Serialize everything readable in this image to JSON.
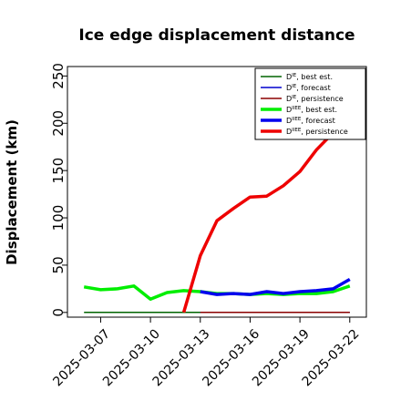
{
  "chart_data": {
    "type": "line",
    "title": "Ice edge displacement distance",
    "ylabel": "Displacement (km)",
    "xlabel": "",
    "ylim": [
      -5,
      260
    ],
    "yticks": [
      0,
      50,
      100,
      150,
      200,
      250
    ],
    "xlim": [
      "2025-03-05",
      "2025-03-23"
    ],
    "xticks": [
      "2025-03-07",
      "2025-03-10",
      "2025-03-13",
      "2025-03-16",
      "2025-03-19",
      "2025-03-22"
    ],
    "highlighted_xtick": "2025-03-13",
    "highlight_color": "#228B22",
    "legend_position": "top-right",
    "series": [
      {
        "name": "Dᴵᴱ, best est.",
        "legend_main": "D",
        "legend_sup": "IE",
        "legend_rest": ", best est.",
        "color": "#006400",
        "width": 1.5,
        "x": [
          "2025-03-06",
          "2025-03-22"
        ],
        "y": [
          0,
          0
        ]
      },
      {
        "name": "Dᴵᴱ, forecast",
        "legend_main": "D",
        "legend_sup": "IE",
        "legend_rest": ", forecast",
        "color": "#0000cd",
        "width": 1.5,
        "x": [
          "2025-03-13",
          "2025-03-22"
        ],
        "y": [
          0,
          0
        ]
      },
      {
        "name": "Dᴵᴱ, persistence",
        "legend_main": "D",
        "legend_sup": "IE",
        "legend_rest": ", persistence",
        "color": "#8b0000",
        "width": 1.5,
        "x": [
          "2025-03-13",
          "2025-03-22"
        ],
        "y": [
          0,
          0
        ]
      },
      {
        "name": "Dᴵᴵᴱᴱ, best est.",
        "legend_main": "D",
        "legend_sup": "IIEE",
        "legend_rest": ", best est.",
        "color": "#00ee00",
        "width": 3.5,
        "x": [
          "2025-03-06",
          "2025-03-07",
          "2025-03-08",
          "2025-03-09",
          "2025-03-10",
          "2025-03-11",
          "2025-03-12",
          "2025-03-13",
          "2025-03-14",
          "2025-03-15",
          "2025-03-16",
          "2025-03-17",
          "2025-03-18",
          "2025-03-19",
          "2025-03-20",
          "2025-03-21",
          "2025-03-22"
        ],
        "y": [
          27,
          24,
          25,
          28,
          14,
          21,
          23,
          22,
          20,
          20,
          19,
          20,
          19,
          20,
          20,
          22,
          28
        ]
      },
      {
        "name": "Dᴵᴵᴱᴱ, forecast",
        "legend_main": "D",
        "legend_sup": "IIEE",
        "legend_rest": ", forecast",
        "color": "#0000ee",
        "width": 3.5,
        "x": [
          "2025-03-13",
          "2025-03-14",
          "2025-03-15",
          "2025-03-16",
          "2025-03-17",
          "2025-03-18",
          "2025-03-19",
          "2025-03-20",
          "2025-03-21",
          "2025-03-22"
        ],
        "y": [
          22,
          19,
          20,
          19,
          22,
          20,
          22,
          23,
          25,
          35
        ]
      },
      {
        "name": "Dᴵᴵᴱᴱ, persistence",
        "legend_main": "D",
        "legend_sup": "IIEE",
        "legend_rest": ", persistence",
        "color": "#ee0000",
        "width": 3.5,
        "x": [
          "2025-03-12",
          "2025-03-13",
          "2025-03-14",
          "2025-03-15",
          "2025-03-16",
          "2025-03-17",
          "2025-03-18",
          "2025-03-19",
          "2025-03-20",
          "2025-03-21"
        ],
        "y": [
          0,
          60,
          97,
          110,
          122,
          123,
          134,
          149,
          172,
          190
        ]
      }
    ]
  }
}
